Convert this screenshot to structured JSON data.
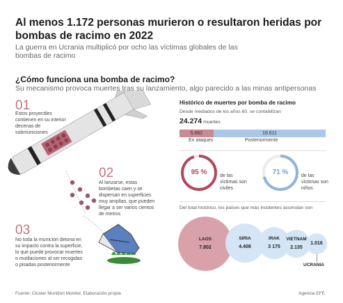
{
  "header": {
    "title": "Al menos 1.172 personas murieron o resultaron heridas por bombas de racimo en 2022",
    "subtitle": "La guerra en Ucrania multiplicó por ocho las víctimas globales de las bombas de racimo"
  },
  "how_it_works": {
    "heading": "¿Cómo funciona una bomba de racimo?",
    "subheading": "Su mecanismo provoca muertes tras su lanzamiento, algo parecido a las minas antipersonas",
    "steps": [
      {
        "number": "01",
        "text": "Estos proyectiles contienen en su interior decenas de submuniciones"
      },
      {
        "number": "02",
        "text": "Al lanzarse, estas bombetas caen y se dispersan en superficies muy amplias, que pueden llegar a ser varios cientos de metros"
      },
      {
        "number": "03",
        "text": "No toda la munición detona en su impacto contra la superficie, lo que puede provocar muertes o mutilaciones al ser recogidas o pisadas posteriormente"
      }
    ]
  },
  "history": {
    "title": "Histórico de muertes por bomba de racimo",
    "subtitle": "Desde mediados de los años 60, se contabilizan",
    "total_value": "24.274",
    "total_unit": "muertes",
    "bar": {
      "attacks_value": "5.662",
      "attacks_label": "En ataques",
      "after_value": "18.611",
      "after_label": "Posteriormente"
    },
    "rings": [
      {
        "value_text": "95 %",
        "label": "de las víctimas son civiles",
        "color": "#b0495d"
      },
      {
        "value_text": "71 %",
        "label": "de las víctimas son niños",
        "color": "#8db4dc"
      }
    ],
    "countries_intro": "Del total histórico, los países que más incidentes acumulan son",
    "countries": [
      {
        "name": "LAOS",
        "value": "7.802"
      },
      {
        "name": "SIRIA",
        "value": "4.408"
      },
      {
        "name": "IRAK",
        "value": "3 175"
      },
      {
        "name": "VIETNAM",
        "value": "2.135"
      },
      {
        "name": "UCRANIA",
        "value": "1.016"
      }
    ]
  },
  "footer": {
    "source": "Fuente: Cluster Munition Monitor, Elaboración propia",
    "agency": "Agencia EFE"
  },
  "colors": {
    "accent": "#c4737f",
    "attacks": "#c98a93",
    "after": "#a9c8e8",
    "laos": "#d9a1a9",
    "bubble": "#d4e5f5"
  },
  "chart_data": [
    {
      "type": "bar",
      "title": "Histórico de muertes por bomba de racimo",
      "categories": [
        "En ataques",
        "Posteriormente"
      ],
      "values": [
        5662,
        18611
      ]
    },
    {
      "type": "pie",
      "categories": [
        "civiles"
      ],
      "values": [
        95
      ]
    },
    {
      "type": "pie",
      "categories": [
        "niños"
      ],
      "values": [
        71
      ]
    },
    {
      "type": "bubble",
      "categories": [
        "LAOS",
        "SIRIA",
        "IRAK",
        "VIETNAM",
        "UCRANIA"
      ],
      "values": [
        7802,
        4408,
        3175,
        2135,
        1016
      ]
    }
  ]
}
